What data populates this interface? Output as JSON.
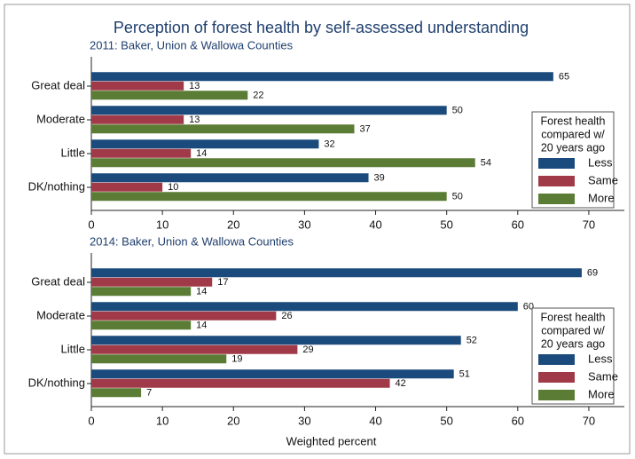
{
  "title": "Perception of forest health by self-assessed understanding",
  "chart_data": [
    {
      "type": "bar",
      "orientation": "horizontal",
      "subtitle": "2011: Baker, Union & Wallowa Counties",
      "categories": [
        "Great deal",
        "Moderate",
        "Little",
        "DK/nothing"
      ],
      "series": [
        {
          "name": "Less",
          "color": "#1b4a7c",
          "values": [
            65,
            50,
            32,
            39
          ]
        },
        {
          "name": "Same",
          "color": "#a03a49",
          "values": [
            13,
            13,
            14,
            10
          ]
        },
        {
          "name": "More",
          "color": "#5b7c35",
          "values": [
            22,
            37,
            54,
            50
          ]
        }
      ],
      "xlim": [
        0,
        75
      ],
      "xticks": [
        0,
        10,
        20,
        30,
        40,
        50,
        60,
        70
      ],
      "legend_title": [
        "Forest health",
        "compared w/",
        "20 years ago"
      ],
      "legend_position": "lower right"
    },
    {
      "type": "bar",
      "orientation": "horizontal",
      "subtitle": "2014: Baker, Union & Wallowa Counties",
      "categories": [
        "Great deal",
        "Moderate",
        "Little",
        "DK/nothing"
      ],
      "series": [
        {
          "name": "Less",
          "color": "#1b4a7c",
          "values": [
            69,
            60,
            52,
            51
          ]
        },
        {
          "name": "Same",
          "color": "#a03a49",
          "values": [
            17,
            26,
            29,
            42
          ]
        },
        {
          "name": "More",
          "color": "#5b7c35",
          "values": [
            14,
            14,
            19,
            7
          ]
        }
      ],
      "xlim": [
        0,
        75
      ],
      "xticks": [
        0,
        10,
        20,
        30,
        40,
        50,
        60,
        70
      ],
      "xlabel": "Weighted percent",
      "legend_title": [
        "Forest health",
        "compared w/",
        "20 years ago"
      ],
      "legend_position": "lower right"
    }
  ]
}
